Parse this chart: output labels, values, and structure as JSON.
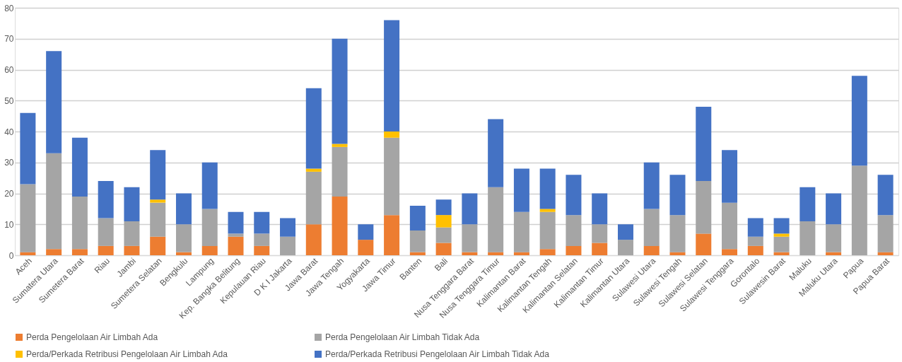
{
  "chart_data": {
    "type": "bar",
    "stacked": true,
    "categories": [
      "Aceh",
      "Sumatera Utara",
      "Sumetera Barat",
      "Riau",
      "Jambi",
      "Sumetera Selatan",
      "Bengkulu",
      "Lampung",
      "Kep. Bangka Belitung",
      "Kepulauan Riau",
      "D K I Jakarta",
      "Jawa Barat",
      "Jawa Tengah",
      "Yogyakarta",
      "Jawa Timur",
      "Banten",
      "Bali",
      "Nusa Tenggara Barat",
      "Nusa Tenggara Timur",
      "Kalimantan Barat",
      "Kalimantan Tengah",
      "Kalimantan Selatan",
      "Kalimantan Timur",
      "Kalimantan Utara",
      "Sulawesi Utara",
      "Sulawesi Tengah",
      "Sulawesi Selatan",
      "Sulawesi Tenggara",
      "Gorontalo",
      "Sulawesin Barat",
      "Maluku",
      "Maluku Utara",
      "Papua",
      "Papua Barat"
    ],
    "series": [
      {
        "name": "Perda Pengelolaan Air Limbah Ada",
        "color": "#ed7d31",
        "values": [
          1,
          2,
          2,
          3,
          3,
          6,
          1,
          3,
          6,
          3,
          0,
          10,
          19,
          5,
          13,
          1,
          4,
          1,
          1,
          1,
          2,
          3,
          4,
          0,
          3,
          1,
          7,
          2,
          3,
          1,
          0,
          1,
          0,
          1
        ]
      },
      {
        "name": "Perda Pengelolaan Air Limbah Tidak Ada",
        "color": "#a5a5a5",
        "values": [
          22,
          31,
          17,
          9,
          8,
          11,
          9,
          12,
          1,
          4,
          6,
          17,
          16,
          0,
          25,
          7,
          5,
          9,
          21,
          13,
          12,
          10,
          6,
          5,
          12,
          12,
          17,
          15,
          3,
          5,
          11,
          9,
          29,
          12
        ]
      },
      {
        "name": "Perda/Perkada Retribusi Pengelolaan Air Limbah Ada",
        "color": "#ffc000",
        "values": [
          0,
          0,
          0,
          0,
          0,
          1,
          0,
          0,
          0,
          0,
          0,
          1,
          1,
          0,
          2,
          0,
          4,
          0,
          0,
          0,
          1,
          0,
          0,
          0,
          0,
          0,
          0,
          0,
          0,
          1,
          0,
          0,
          0,
          0
        ]
      },
      {
        "name": "Perda/Perkada Retribusi Pengelolaan Air Limbah Tidak Ada",
        "color": "#4472c4",
        "values": [
          23,
          33,
          19,
          12,
          11,
          16,
          10,
          15,
          7,
          7,
          6,
          26,
          34,
          5,
          36,
          8,
          5,
          10,
          22,
          14,
          13,
          13,
          10,
          5,
          15,
          13,
          24,
          17,
          6,
          5,
          11,
          10,
          29,
          13
        ]
      }
    ],
    "ylim": [
      0,
      80
    ],
    "yticks": [
      0,
      10,
      20,
      30,
      40,
      50,
      60,
      70,
      80
    ],
    "grid": "y",
    "legend": "bottom"
  }
}
